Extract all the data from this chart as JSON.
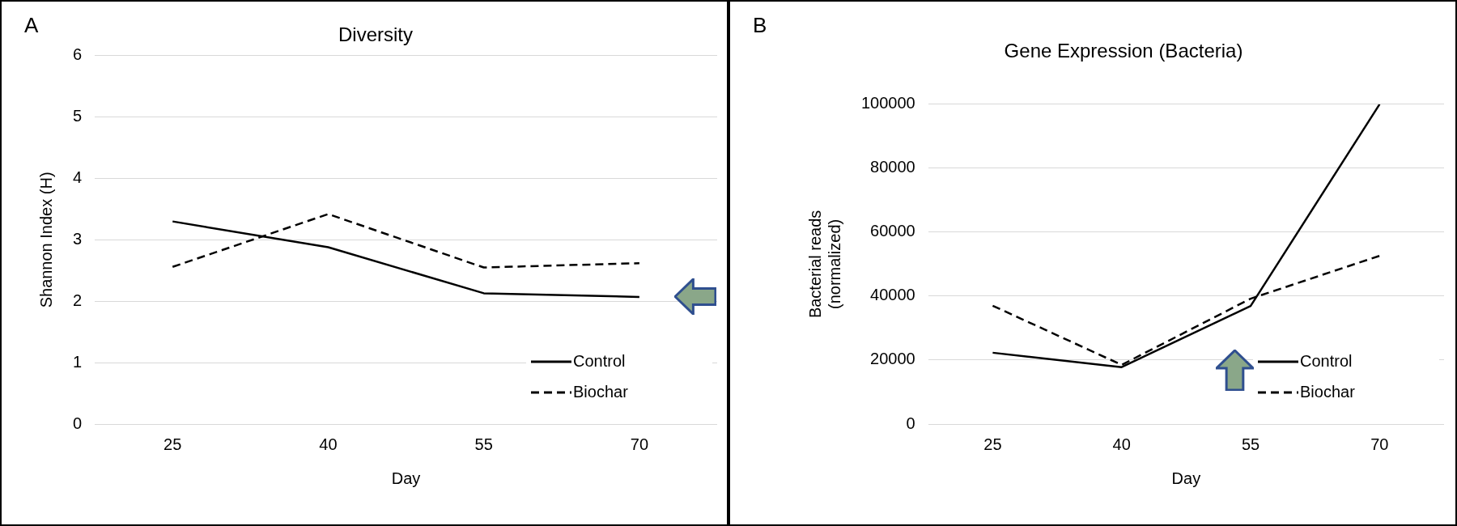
{
  "chart_data": [
    {
      "type": "line",
      "title": "Diversity",
      "xlabel": "Day",
      "ylabel": "Shannon Index (H)",
      "annotations": [
        "A"
      ],
      "categories": [
        "25",
        "40",
        "55",
        "70"
      ],
      "series": [
        {
          "name": "Control",
          "color": "#000000",
          "line_style": "solid",
          "values": [
            3.3,
            2.88,
            2.13,
            2.07
          ]
        },
        {
          "name": "Biochar",
          "color": "#000000",
          "line_style": "dashed",
          "values": [
            2.56,
            3.42,
            2.55,
            2.62
          ]
        }
      ],
      "ylim": [
        0,
        6
      ],
      "yticks": [
        0,
        1,
        2,
        3,
        4,
        5,
        6
      ],
      "grid": "y",
      "legend": "bottom right",
      "marker": "none"
    },
    {
      "type": "line",
      "title": "Gene Expression (Bacteria)",
      "xlabel": "Day",
      "ylabel": "Bacterial reads (normalized)",
      "annotations": [
        "B"
      ],
      "categories": [
        "25",
        "40",
        "55",
        "70"
      ],
      "series": [
        {
          "name": "Control",
          "color": "#000000",
          "line_style": "solid",
          "values": [
            22300,
            17800,
            36900,
            100000
          ]
        },
        {
          "name": "Biochar",
          "color": "#000000",
          "line_style": "dashed",
          "values": [
            37000,
            18500,
            39200,
            52600
          ]
        }
      ],
      "ylim": [
        0,
        100000
      ],
      "yticks": [
        0,
        20000,
        40000,
        60000,
        80000,
        100000
      ],
      "grid": "y",
      "legend": "bottom right",
      "marker": "none"
    }
  ]
}
